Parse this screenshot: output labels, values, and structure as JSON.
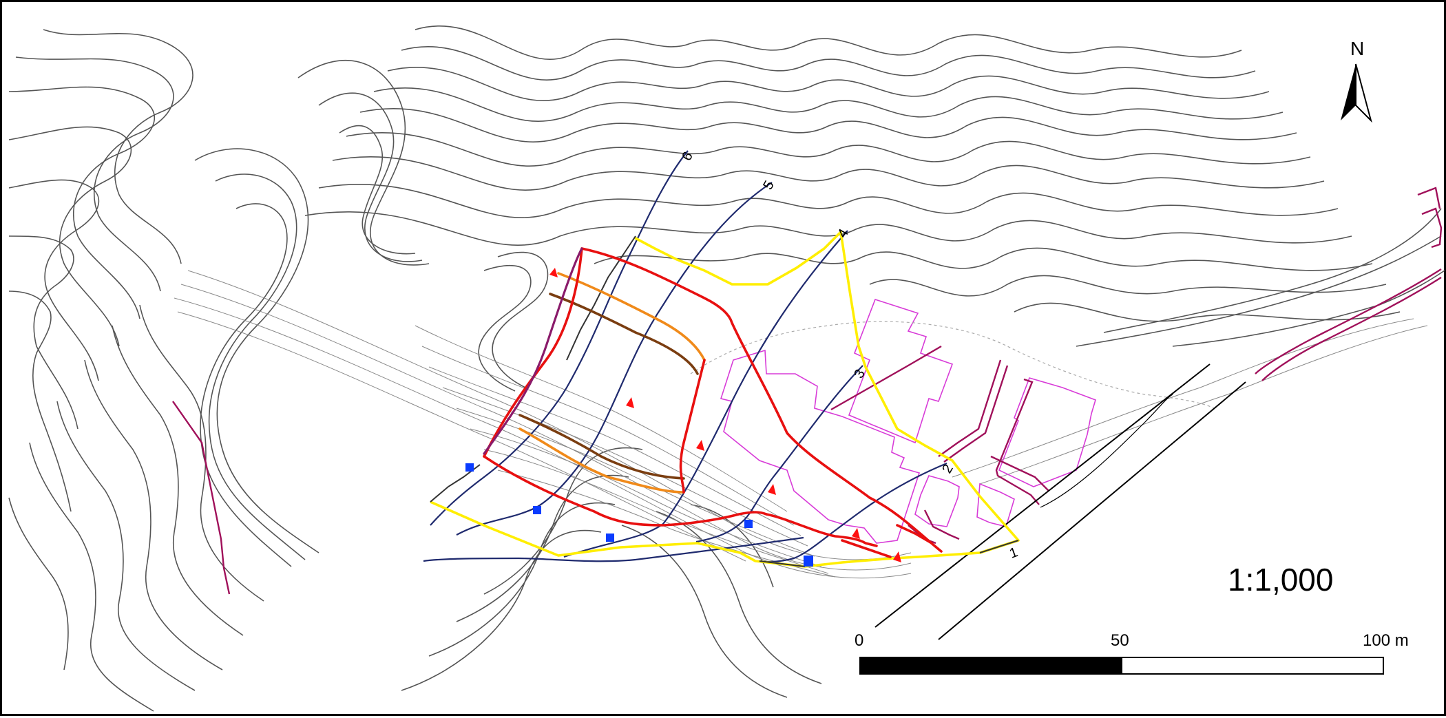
{
  "map": {
    "scale_text": "1:1,000",
    "north_label": "N",
    "scale_bar": {
      "labels": [
        "0",
        "50",
        "100 m"
      ],
      "values_m": [
        0,
        50,
        100
      ]
    },
    "profile_lines": [
      {
        "label": "1"
      },
      {
        "label": "2"
      },
      {
        "label": "3"
      },
      {
        "label": "4"
      },
      {
        "label": "5"
      },
      {
        "label": "6"
      }
    ],
    "colors": {
      "contour": "#555555",
      "contour_minor": "#8a8a8a",
      "profile_line": "#1f2a6e",
      "boundary_yellow": "#ffee00",
      "scarp_red": "#e81010",
      "scarp_orange": "#f08a1a",
      "scarp_brown": "#7a3d10",
      "building_outline": "#d83cd8",
      "road_magenta": "#a0105a",
      "marker_blue": "#0a3cff",
      "marker_red": "#ff1010"
    }
  }
}
